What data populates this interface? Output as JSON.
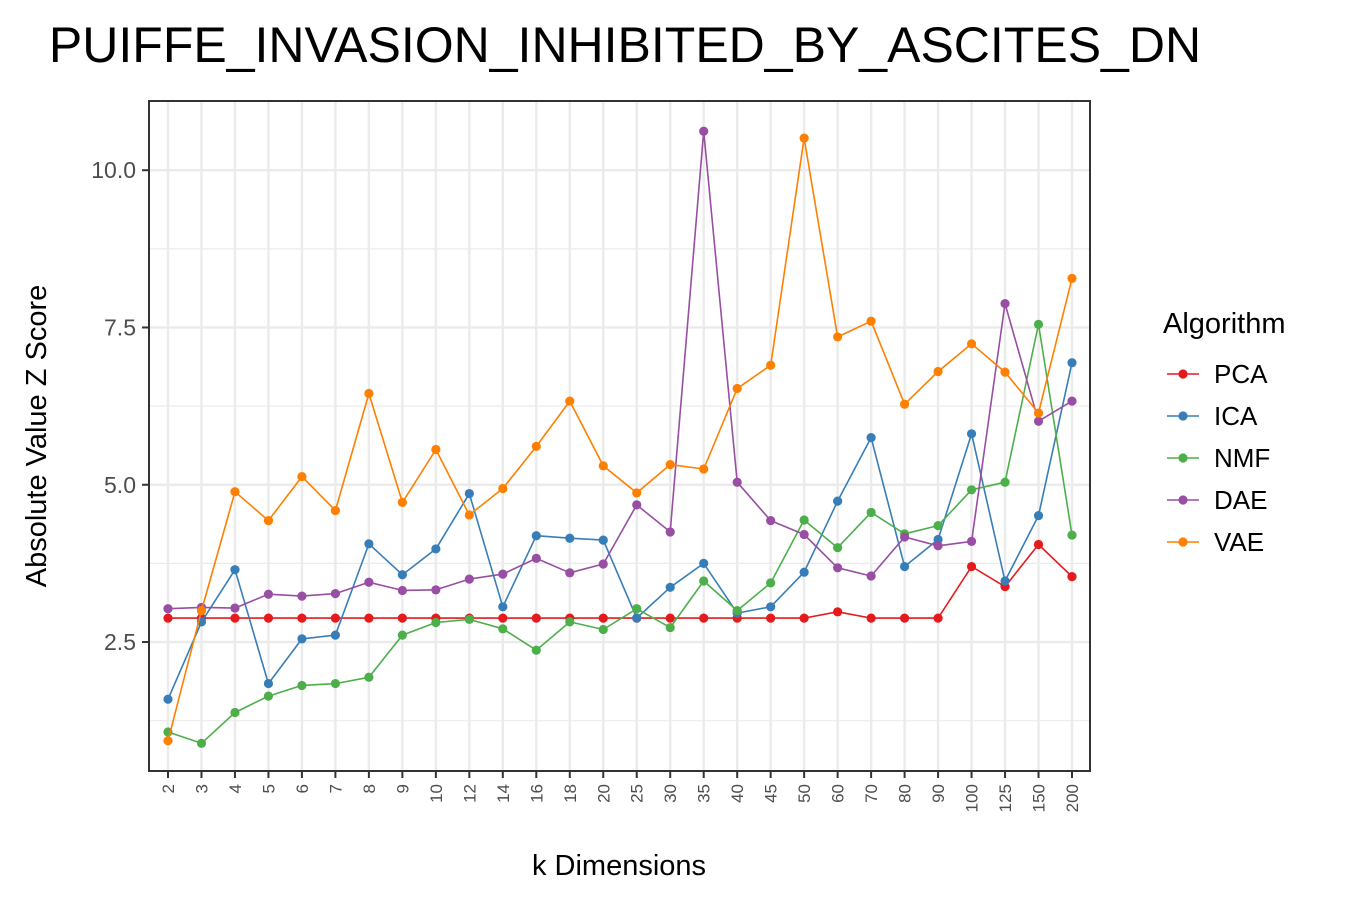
{
  "chart_data": {
    "type": "line",
    "title": "PUIFFE_INVASION_INHIBITED_BY_ASCITES_DN",
    "xlabel": "k Dimensions",
    "ylabel": "Absolute Value Z Score",
    "x": [
      "2",
      "3",
      "4",
      "5",
      "6",
      "7",
      "8",
      "9",
      "10",
      "12",
      "14",
      "16",
      "18",
      "20",
      "25",
      "30",
      "35",
      "40",
      "45",
      "50",
      "60",
      "70",
      "80",
      "90",
      "100",
      "125",
      "150",
      "200"
    ],
    "ylim": [
      0.45,
      11.1
    ],
    "yticks": [
      2.5,
      5.0,
      7.5,
      10.0
    ],
    "ytick_labels": [
      "2.5",
      "5.0",
      "7.5",
      "10.0"
    ],
    "grid": true,
    "legend": {
      "title": "Algorithm",
      "position": "right"
    },
    "series": [
      {
        "name": "PCA",
        "color": "#e41a1c",
        "values": [
          2.88,
          2.88,
          2.88,
          2.88,
          2.88,
          2.88,
          2.88,
          2.88,
          2.88,
          2.88,
          2.88,
          2.88,
          2.88,
          2.88,
          2.88,
          2.88,
          2.88,
          2.88,
          2.88,
          2.88,
          2.98,
          2.88,
          2.88,
          2.88,
          3.7,
          3.38,
          4.05,
          3.54
        ]
      },
      {
        "name": "ICA",
        "color": "#377eb8",
        "values": [
          1.59,
          2.82,
          3.65,
          1.84,
          2.55,
          2.61,
          4.06,
          3.57,
          3.98,
          4.86,
          3.06,
          4.19,
          4.15,
          4.12,
          2.88,
          3.37,
          3.75,
          2.96,
          3.06,
          3.61,
          4.74,
          5.75,
          3.7,
          4.13,
          5.81,
          3.47,
          4.51,
          6.94
        ]
      },
      {
        "name": "NMF",
        "color": "#4daf4a",
        "values": [
          1.07,
          0.89,
          1.38,
          1.64,
          1.81,
          1.84,
          1.94,
          2.61,
          2.81,
          2.86,
          2.71,
          2.37,
          2.82,
          2.7,
          3.03,
          2.73,
          3.47,
          3.0,
          3.44,
          4.44,
          4.0,
          4.56,
          4.22,
          4.35,
          4.92,
          5.04,
          7.55,
          4.2
        ]
      },
      {
        "name": "DAE",
        "color": "#984ea3",
        "values": [
          3.03,
          3.05,
          3.04,
          3.26,
          3.23,
          3.27,
          3.45,
          3.32,
          3.33,
          3.5,
          3.58,
          3.83,
          3.6,
          3.74,
          4.68,
          4.25,
          10.62,
          5.04,
          4.43,
          4.21,
          3.68,
          3.55,
          4.17,
          4.03,
          4.1,
          7.88,
          6.01,
          6.33
        ]
      },
      {
        "name": "VAE",
        "color": "#ff7f00",
        "values": [
          0.93,
          3.0,
          4.89,
          4.43,
          5.13,
          4.59,
          6.45,
          4.72,
          5.56,
          4.52,
          4.94,
          5.61,
          6.33,
          5.3,
          4.87,
          5.32,
          5.25,
          6.53,
          6.9,
          10.51,
          7.35,
          7.6,
          6.28,
          6.8,
          7.24,
          6.79,
          6.14,
          8.28
        ]
      }
    ]
  }
}
